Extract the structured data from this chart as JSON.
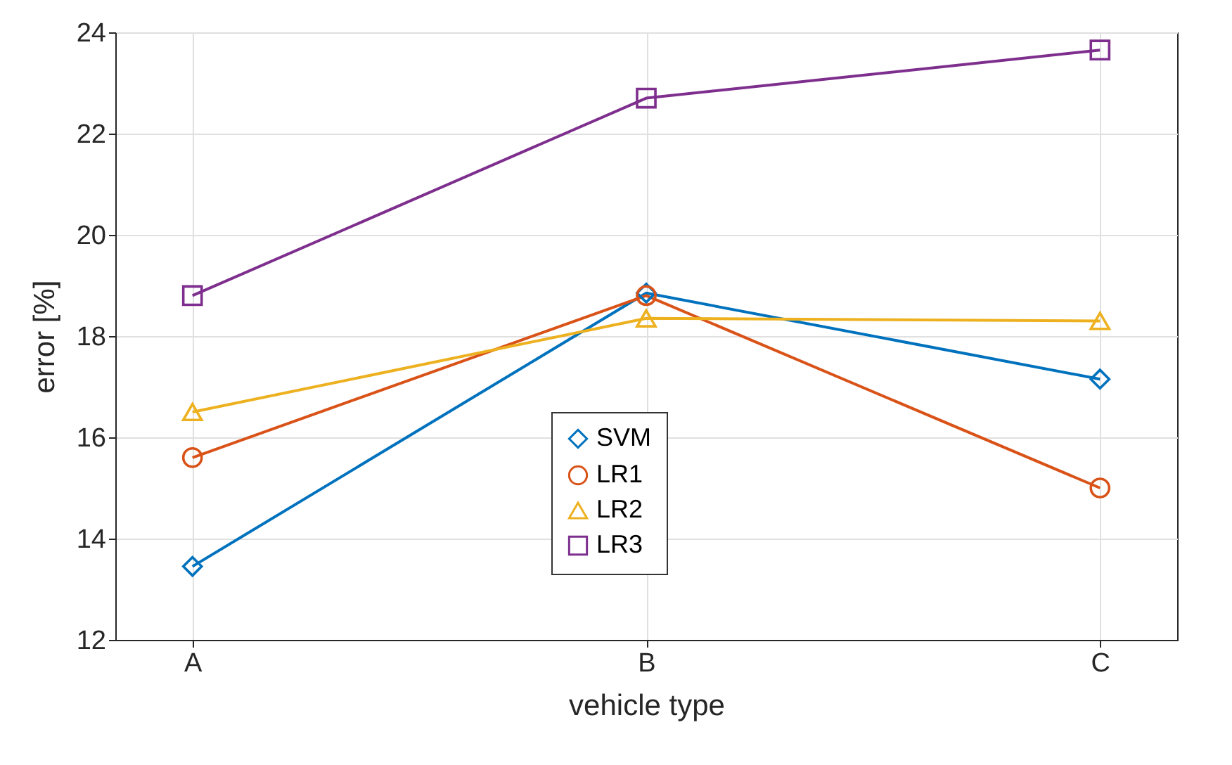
{
  "chart_data": {
    "type": "line",
    "xlabel": "vehicle type",
    "ylabel": "error [%]",
    "categories": [
      "A",
      "B",
      "C"
    ],
    "series": [
      {
        "name": "SVM",
        "color": "#0072bd",
        "marker": "diamond",
        "values": [
          13.45,
          18.85,
          17.15
        ]
      },
      {
        "name": "LR1",
        "color": "#d95319",
        "marker": "circle",
        "values": [
          15.6,
          18.8,
          15.0
        ]
      },
      {
        "name": "LR2",
        "color": "#edb120",
        "marker": "triangle",
        "values": [
          16.5,
          18.35,
          18.3
        ]
      },
      {
        "name": "LR3",
        "color": "#7e2f8e",
        "marker": "square",
        "values": [
          18.8,
          22.7,
          23.65
        ]
      }
    ],
    "ylim": [
      12,
      24
    ],
    "yticks": [
      12,
      14,
      16,
      18,
      20,
      22,
      24
    ],
    "grid": true,
    "legend": "bottom"
  }
}
